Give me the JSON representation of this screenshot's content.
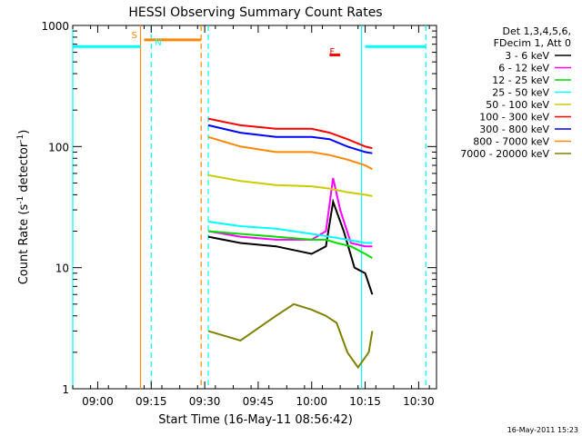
{
  "chart_data": {
    "type": "line",
    "title": "HESSI Observing Summary Count Rates",
    "xlabel": "Start Time (16-May-11 08:56:42)",
    "ylabel_main": "Count Rate (s",
    "ylabel_sup1": "-1",
    "ylabel_mid": " detector",
    "ylabel_sup2": "-1",
    "ylabel_end": ")",
    "yscale": "log",
    "ylim": [
      1,
      1000
    ],
    "xlim": [
      "08:53",
      "10:35"
    ],
    "x_ticks": [
      "09:00",
      "09:15",
      "09:30",
      "09:45",
      "10:00",
      "10:15",
      "10:30"
    ],
    "y_ticks": [
      "1",
      "10",
      "100",
      "1000"
    ],
    "legend": {
      "placement": "right-top",
      "header": [
        "Det 1,3,4,5,6,",
        "FDecim 1, Att 0"
      ],
      "entries": [
        {
          "label": "3 - 6 keV",
          "color": "#000000"
        },
        {
          "label": "6 - 12 keV",
          "color": "#ff00ff"
        },
        {
          "label": "12 - 25 keV",
          "color": "#00dd00"
        },
        {
          "label": "25 - 50 keV",
          "color": "#00ffff"
        },
        {
          "label": "50 - 100 keV",
          "color": "#cccc00"
        },
        {
          "label": "100 - 300 keV",
          "color": "#ff0000"
        },
        {
          "label": "300 - 800 keV",
          "color": "#0000ff"
        },
        {
          "label": "800 - 7000 keV",
          "color": "#ff8800"
        },
        {
          "label": "7000 - 20000 keV",
          "color": "#808000"
        }
      ]
    },
    "series": [
      {
        "name": "3 - 6 keV",
        "color": "#000000",
        "x": [
          "09:31",
          "09:40",
          "09:50",
          "10:00",
          "10:04",
          "10:06",
          "10:09",
          "10:12",
          "10:15",
          "10:17"
        ],
        "y": [
          18,
          16,
          15,
          13,
          15,
          35,
          20,
          10,
          9,
          6
        ]
      },
      {
        "name": "6 - 12 keV",
        "color": "#ff00ff",
        "x": [
          "09:31",
          "09:40",
          "09:50",
          "10:00",
          "10:04",
          "10:06",
          "10:08",
          "10:11",
          "10:15",
          "10:17"
        ],
        "y": [
          20,
          18,
          17,
          17,
          20,
          55,
          30,
          16,
          15,
          15
        ]
      },
      {
        "name": "12 - 25 keV",
        "color": "#00dd00",
        "x": [
          "09:31",
          "09:40",
          "09:50",
          "10:00",
          "10:04",
          "10:07",
          "10:11",
          "10:15",
          "10:17"
        ],
        "y": [
          20,
          19,
          18,
          17,
          17,
          16,
          15,
          13,
          12
        ]
      },
      {
        "name": "25 - 50 keV",
        "color": "#00ffff",
        "x": [
          "09:31",
          "09:40",
          "09:50",
          "10:00",
          "10:05",
          "10:10",
          "10:15",
          "10:17"
        ],
        "y": [
          24,
          22,
          21,
          19,
          18,
          17,
          16,
          16
        ]
      },
      {
        "name": "50 - 100 keV",
        "color": "#cccc00",
        "x": [
          "09:31",
          "09:40",
          "09:50",
          "10:00",
          "10:05",
          "10:10",
          "10:15",
          "10:17"
        ],
        "y": [
          58,
          52,
          48,
          47,
          45,
          42,
          40,
          39
        ]
      },
      {
        "name": "100 - 300 keV",
        "color": "#ff0000",
        "x": [
          "09:31",
          "09:40",
          "09:50",
          "10:00",
          "10:05",
          "10:10",
          "10:15",
          "10:17"
        ],
        "y": [
          170,
          150,
          140,
          140,
          130,
          115,
          100,
          97
        ]
      },
      {
        "name": "300 - 800 keV",
        "color": "#0000ff",
        "x": [
          "09:31",
          "09:40",
          "09:50",
          "10:00",
          "10:05",
          "10:10",
          "10:15",
          "10:17"
        ],
        "y": [
          150,
          130,
          120,
          120,
          115,
          100,
          90,
          88
        ]
      },
      {
        "name": "800 - 7000 keV",
        "color": "#ff8800",
        "x": [
          "09:31",
          "09:40",
          "09:50",
          "10:00",
          "10:05",
          "10:10",
          "10:15",
          "10:17"
        ],
        "y": [
          120,
          100,
          90,
          90,
          85,
          78,
          70,
          65
        ]
      },
      {
        "name": "7000 - 20000 keV",
        "color": "#808000",
        "x": [
          "09:31",
          "09:40",
          "09:50",
          "09:55",
          "10:00",
          "10:04",
          "10:07",
          "10:10",
          "10:13",
          "10:16",
          "10:17"
        ],
        "y": [
          3,
          2.5,
          4,
          5,
          4.5,
          4,
          3.5,
          2,
          1.5,
          2,
          3
        ]
      }
    ],
    "annotations": [
      {
        "text": "S",
        "color": "#ff8800",
        "x": "09:12"
      },
      {
        "text": "N",
        "color": "#00ffff",
        "x": "09:15"
      },
      {
        "text": "F",
        "color": "#ff0000",
        "x": "10:04"
      }
    ],
    "flag_bars": [
      {
        "color": "#00ffff",
        "x0": "08:53",
        "x1": "09:12",
        "y": 670
      },
      {
        "color": "#ff8800",
        "x0": "09:13",
        "x1": "09:29",
        "y": 760
      },
      {
        "color": "#00ffff",
        "x0": "10:15",
        "x1": "10:32",
        "y": 670
      },
      {
        "color": "#ff0000",
        "x0": "10:05",
        "x1": "10:08",
        "y": 570
      }
    ],
    "vlines": [
      {
        "color": "#ff8800",
        "x": "09:12",
        "style": "solid"
      },
      {
        "color": "#00ffff",
        "x": "09:15",
        "style": "dashed"
      },
      {
        "color": "#ff8800",
        "x": "09:29",
        "style": "dashed"
      },
      {
        "color": "#00ffff",
        "x": "09:31",
        "style": "dashed"
      },
      {
        "color": "#00ffff",
        "x": "10:14",
        "style": "solid"
      },
      {
        "color": "#00ffff",
        "x": "10:32",
        "style": "dashed"
      },
      {
        "color": "#00ffff",
        "x": "08:53",
        "style": "solid"
      }
    ],
    "footer": "16-May-2011 15:23"
  }
}
